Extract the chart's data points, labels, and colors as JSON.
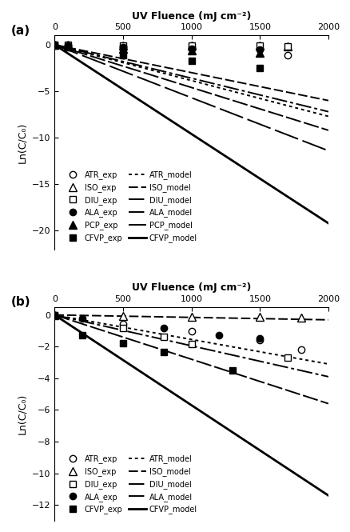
{
  "panel_a": {
    "title": "UV Fluence (mJ cm⁻²)",
    "ylabel": "Ln(C/C₀)",
    "xlim": [
      0,
      2000
    ],
    "ylim": [
      -22,
      1
    ],
    "yticks": [
      0,
      -5,
      -10,
      -15,
      -20
    ],
    "xticks": [
      0,
      500,
      1000,
      1500,
      2000
    ],
    "models": {
      "ATR": {
        "slope": -0.00385
      },
      "ISO": {
        "slope": -0.003
      },
      "DIU": {
        "slope": -0.0046
      },
      "ALA": {
        "slope": -0.0036
      },
      "PCP": {
        "slope": -0.0057
      },
      "CFVP": {
        "slope": -0.0096
      }
    },
    "exp_data": {
      "ATR": {
        "x": [
          0,
          100,
          500,
          1000,
          1500,
          1700
        ],
        "y": [
          0,
          -0.05,
          -0.15,
          -0.25,
          -0.4,
          -1.1
        ],
        "marker": "o",
        "filled": false
      },
      "ISO": {
        "x": [
          0,
          100,
          500,
          1000,
          1500,
          1700
        ],
        "y": [
          0,
          -0.02,
          -0.05,
          -0.08,
          -0.1,
          -0.15
        ],
        "marker": "^",
        "filled": false
      },
      "DIU": {
        "x": [
          0,
          100,
          500,
          1000,
          1500,
          1700
        ],
        "y": [
          0,
          -0.02,
          -0.05,
          -0.08,
          -0.12,
          -0.15
        ],
        "marker": "s",
        "filled": false
      },
      "ALA": {
        "x": [
          0,
          100,
          500,
          1000,
          1500
        ],
        "y": [
          0,
          -0.1,
          -0.25,
          -0.4,
          -0.55
        ],
        "marker": "o",
        "filled": true
      },
      "PCP": {
        "x": [
          0,
          100,
          500,
          1000,
          1500
        ],
        "y": [
          0,
          -0.15,
          -0.4,
          -0.6,
          -0.85
        ],
        "marker": "^",
        "filled": true
      },
      "CFVP": {
        "x": [
          0,
          100,
          500,
          1000,
          1500
        ],
        "y": [
          0,
          -0.3,
          -1.1,
          -1.75,
          -2.5
        ],
        "marker": "s",
        "filled": true
      }
    }
  },
  "panel_b": {
    "title": "UV Fluence (mJ cm⁻²)",
    "ylabel": "Ln(C/C₀)",
    "xlim": [
      0,
      2000
    ],
    "ylim": [
      -13,
      0.5
    ],
    "yticks": [
      0,
      -2,
      -4,
      -6,
      -8,
      -10,
      -12
    ],
    "xticks": [
      0,
      500,
      1000,
      1500,
      2000
    ],
    "models": {
      "ATR": {
        "slope": -0.00155
      },
      "ISO": {
        "slope": -0.000155
      },
      "DIU": {
        "slope": -0.0028
      },
      "ALA": {
        "slope": -0.00195
      },
      "CFVP": {
        "slope": -0.0057
      }
    },
    "exp_data": {
      "ATR": {
        "x": [
          0,
          500,
          1000,
          1500,
          1800
        ],
        "y": [
          0,
          -0.55,
          -1.05,
          -1.6,
          -2.2
        ],
        "marker": "o",
        "filled": false
      },
      "ISO": {
        "x": [
          0,
          500,
          1000,
          1500,
          1800
        ],
        "y": [
          0,
          -0.05,
          -0.1,
          -0.1,
          -0.15
        ],
        "marker": "^",
        "filled": false
      },
      "DIU": {
        "x": [
          0,
          500,
          800,
          1000,
          1700
        ],
        "y": [
          0,
          -0.85,
          -1.4,
          -1.85,
          -2.7
        ],
        "marker": "s",
        "filled": false
      },
      "ALA": {
        "x": [
          0,
          200,
          800,
          1200,
          1500
        ],
        "y": [
          0,
          -0.2,
          -0.85,
          -1.3,
          -1.5
        ],
        "marker": "o",
        "filled": true
      },
      "CFVP": {
        "x": [
          0,
          200,
          500,
          800,
          1300
        ],
        "y": [
          0,
          -1.3,
          -1.8,
          -2.35,
          -3.5
        ],
        "marker": "s",
        "filled": true
      }
    }
  }
}
